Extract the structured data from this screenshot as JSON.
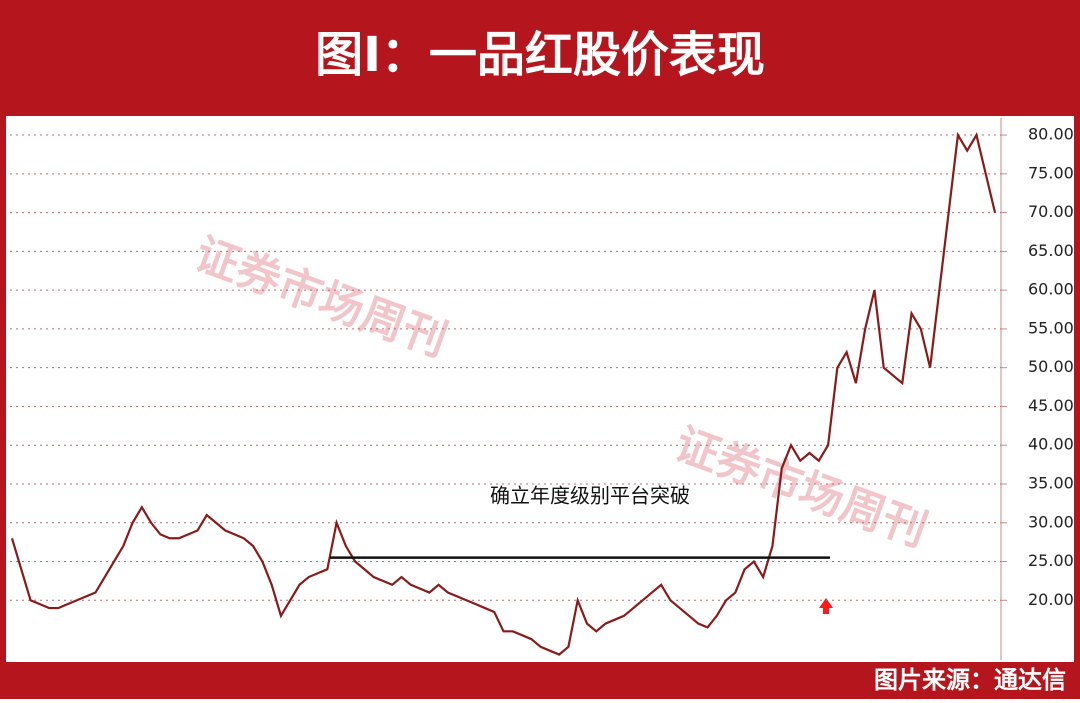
{
  "chart_data": {
    "type": "line",
    "title": "图I：一品红股价表现",
    "source": "图片来源：通达信",
    "annotation": "确立年度级别平台突破",
    "watermark": "证券市场周刊",
    "color": "#8b1a1a",
    "breakout_level": 25.5,
    "values": [
      28,
      24,
      20,
      19.5,
      19,
      19,
      19.5,
      20,
      20.5,
      21,
      23,
      25,
      27,
      30,
      32,
      30,
      28.5,
      28,
      28,
      28.5,
      29,
      31,
      30,
      29,
      28.5,
      28,
      27,
      25,
      22,
      18,
      20,
      22,
      23,
      23.5,
      24,
      30,
      27,
      25,
      24,
      23,
      22.5,
      22,
      23,
      22,
      21.5,
      21,
      22,
      21,
      20.5,
      20,
      19.5,
      19,
      18.5,
      16,
      16,
      15.5,
      15,
      14,
      13.5,
      13,
      14,
      20,
      17,
      16,
      17,
      17.5,
      18,
      19,
      20,
      21,
      22,
      20,
      19,
      18,
      17,
      16.5,
      18,
      20,
      21,
      24,
      25,
      23,
      27,
      37,
      40,
      38,
      39,
      38,
      40,
      50,
      52,
      48,
      55,
      60,
      50,
      49,
      48,
      57,
      55,
      50,
      60,
      70,
      80,
      78,
      80,
      75,
      70
    ],
    "ylim": [
      12.3,
      82.2
    ],
    "yticks": [
      {
        "value": 20,
        "label": "20.00"
      },
      {
        "value": 25,
        "label": "25.00"
      },
      {
        "value": 30,
        "label": "30.00"
      },
      {
        "value": 35,
        "label": "35.00"
      },
      {
        "value": 40,
        "label": "40.00"
      },
      {
        "value": 45,
        "label": "45.00"
      },
      {
        "value": 50,
        "label": "50.00"
      },
      {
        "value": 55,
        "label": "55.00"
      },
      {
        "value": 60,
        "label": "60.00"
      },
      {
        "value": 65,
        "label": "65.00"
      },
      {
        "value": 70,
        "label": "70.00"
      },
      {
        "value": 75,
        "label": "75.00"
      },
      {
        "value": 80,
        "label": "80.00"
      }
    ],
    "grid": true
  }
}
